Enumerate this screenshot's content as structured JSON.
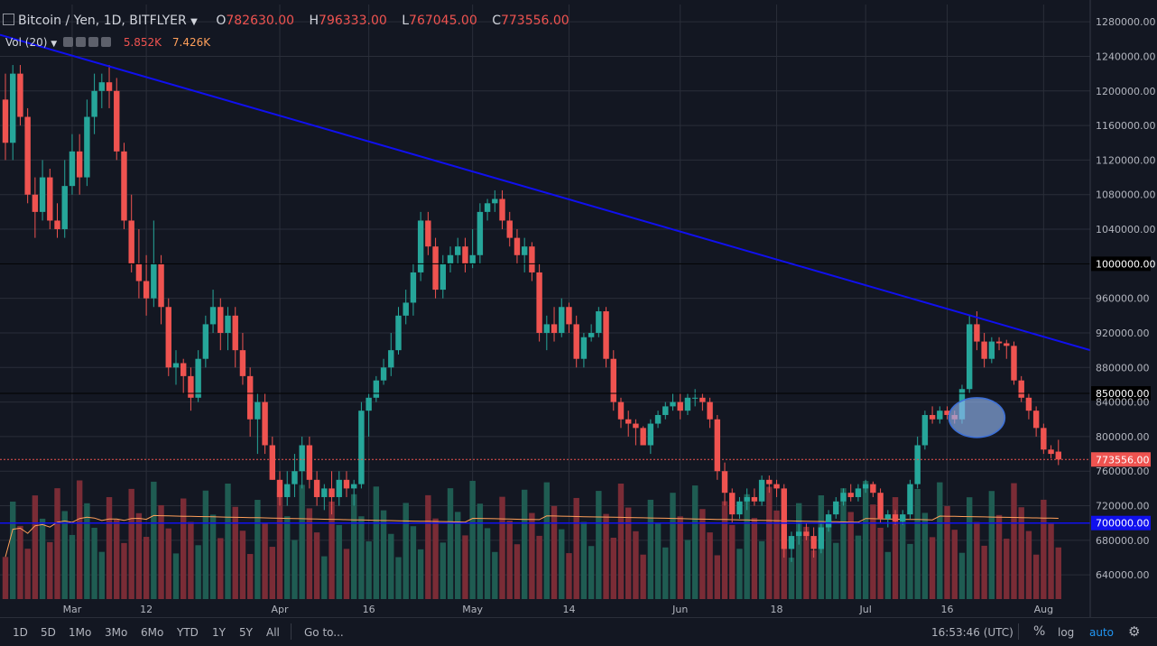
{
  "header": {
    "title": "Bitcoin / Yen, 1D, BITFLYER",
    "open_label": "O",
    "open": "782630.00",
    "high_label": "H",
    "high": "796333.00",
    "low_label": "L",
    "low": "767045.00",
    "close_label": "C",
    "close": "773556.00"
  },
  "volume": {
    "label": "Vol (20)",
    "value1": "5.852K",
    "value2": "7.426K"
  },
  "bottombar": {
    "ranges": [
      "1D",
      "5D",
      "1Mo",
      "3Mo",
      "6Mo",
      "YTD",
      "1Y",
      "5Y",
      "All"
    ],
    "goto": "Go to...",
    "time": "16:53:46 (UTC)",
    "percent": "%",
    "log": "log",
    "auto": "auto"
  },
  "colors": {
    "bg": "#131722",
    "up": "#26a69a",
    "down": "#ef5350",
    "trend": "#1010ee",
    "ma": "#ff9f5a"
  },
  "chart_data": {
    "type": "candlestick",
    "title": "Bitcoin / Yen, 1D, BITFLYER",
    "ylim": [
      612000,
      1300000
    ],
    "y_ticks": [
      "1280000.00",
      "1240000.00",
      "1200000.00",
      "1160000.00",
      "1120000.00",
      "1080000.00",
      "1040000.00",
      "1000000.00",
      "960000.00",
      "920000.00",
      "880000.00",
      "850000.00",
      "840000.00",
      "800000.00",
      "773556.00",
      "760000.00",
      "720000.00",
      "700000.00",
      "680000.00",
      "640000.00"
    ],
    "x_labels": [
      "Mar",
      "12",
      "Apr",
      "16",
      "May",
      "14",
      "Jun",
      "18",
      "Jul",
      "16",
      "Aug"
    ],
    "horizontal_lines": [
      1000000,
      850000,
      700000
    ],
    "last_price": 773556,
    "trendline": {
      "start": 1265000,
      "end": 900000
    },
    "ohlc": [
      [
        1190000,
        1220000,
        1120000,
        1140000
      ],
      [
        1140000,
        1230000,
        1120000,
        1220000
      ],
      [
        1220000,
        1230000,
        1160000,
        1170000
      ],
      [
        1170000,
        1180000,
        1070000,
        1080000
      ],
      [
        1080000,
        1100000,
        1030000,
        1060000
      ],
      [
        1060000,
        1120000,
        1050000,
        1100000
      ],
      [
        1100000,
        1110000,
        1040000,
        1050000
      ],
      [
        1050000,
        1070000,
        1030000,
        1040000
      ],
      [
        1040000,
        1120000,
        1030000,
        1090000
      ],
      [
        1090000,
        1150000,
        1080000,
        1130000
      ],
      [
        1130000,
        1150000,
        1080000,
        1100000
      ],
      [
        1100000,
        1190000,
        1090000,
        1170000
      ],
      [
        1170000,
        1220000,
        1150000,
        1200000
      ],
      [
        1200000,
        1220000,
        1180000,
        1210000
      ],
      [
        1210000,
        1230000,
        1180000,
        1200000
      ],
      [
        1200000,
        1215000,
        1120000,
        1130000
      ],
      [
        1130000,
        1140000,
        1040000,
        1050000
      ],
      [
        1050000,
        1080000,
        990000,
        1000000
      ],
      [
        1000000,
        1040000,
        960000,
        980000
      ],
      [
        980000,
        1010000,
        940000,
        960000
      ],
      [
        960000,
        1050000,
        950000,
        1000000
      ],
      [
        1000000,
        1010000,
        930000,
        950000
      ],
      [
        950000,
        960000,
        870000,
        880000
      ],
      [
        880000,
        900000,
        860000,
        885000
      ],
      [
        885000,
        890000,
        850000,
        870000
      ],
      [
        870000,
        880000,
        830000,
        845000
      ],
      [
        845000,
        900000,
        840000,
        890000
      ],
      [
        890000,
        940000,
        880000,
        930000
      ],
      [
        930000,
        970000,
        920000,
        950000
      ],
      [
        950000,
        960000,
        900000,
        920000
      ],
      [
        920000,
        950000,
        900000,
        940000
      ],
      [
        940000,
        950000,
        880000,
        900000
      ],
      [
        900000,
        920000,
        860000,
        870000
      ],
      [
        870000,
        880000,
        800000,
        820000
      ],
      [
        820000,
        850000,
        780000,
        840000
      ],
      [
        840000,
        850000,
        780000,
        790000
      ],
      [
        790000,
        800000,
        750000,
        750000
      ],
      [
        750000,
        760000,
        720000,
        730000
      ],
      [
        730000,
        760000,
        720000,
        745000
      ],
      [
        745000,
        780000,
        730000,
        760000
      ],
      [
        760000,
        800000,
        740000,
        790000
      ],
      [
        790000,
        800000,
        740000,
        750000
      ],
      [
        750000,
        760000,
        720000,
        730000
      ],
      [
        730000,
        745000,
        715000,
        740000
      ],
      [
        740000,
        760000,
        710000,
        730000
      ],
      [
        730000,
        760000,
        720000,
        750000
      ],
      [
        750000,
        760000,
        730000,
        740000
      ],
      [
        740000,
        750000,
        720000,
        745000
      ],
      [
        745000,
        840000,
        740000,
        830000
      ],
      [
        830000,
        850000,
        800000,
        845000
      ],
      [
        845000,
        870000,
        840000,
        865000
      ],
      [
        865000,
        890000,
        860000,
        880000
      ],
      [
        880000,
        920000,
        870000,
        900000
      ],
      [
        900000,
        950000,
        895000,
        940000
      ],
      [
        940000,
        970000,
        930000,
        955000
      ],
      [
        955000,
        1000000,
        940000,
        990000
      ],
      [
        990000,
        1060000,
        980000,
        1050000
      ],
      [
        1050000,
        1060000,
        1010000,
        1020000
      ],
      [
        1020000,
        1030000,
        960000,
        970000
      ],
      [
        970000,
        1010000,
        960000,
        1000000
      ],
      [
        1000000,
        1020000,
        990000,
        1010000
      ],
      [
        1010000,
        1030000,
        1000000,
        1020000
      ],
      [
        1020000,
        1030000,
        990000,
        1000000
      ],
      [
        1000000,
        1040000,
        995000,
        1010000
      ],
      [
        1010000,
        1070000,
        1000000,
        1060000
      ],
      [
        1060000,
        1075000,
        1050000,
        1070000
      ],
      [
        1070000,
        1085000,
        1060000,
        1075000
      ],
      [
        1075000,
        1085000,
        1040000,
        1050000
      ],
      [
        1050000,
        1060000,
        1020000,
        1030000
      ],
      [
        1030000,
        1040000,
        1000000,
        1010000
      ],
      [
        1010000,
        1030000,
        990000,
        1020000
      ],
      [
        1020000,
        1025000,
        980000,
        990000
      ],
      [
        990000,
        1000000,
        910000,
        920000
      ],
      [
        920000,
        940000,
        900000,
        930000
      ],
      [
        930000,
        950000,
        910000,
        920000
      ],
      [
        920000,
        960000,
        915000,
        950000
      ],
      [
        950000,
        955000,
        920000,
        930000
      ],
      [
        930000,
        940000,
        880000,
        890000
      ],
      [
        890000,
        920000,
        880000,
        915000
      ],
      [
        915000,
        930000,
        910000,
        920000
      ],
      [
        920000,
        950000,
        915000,
        945000
      ],
      [
        945000,
        950000,
        880000,
        890000
      ],
      [
        890000,
        900000,
        830000,
        840000
      ],
      [
        840000,
        845000,
        810000,
        820000
      ],
      [
        820000,
        830000,
        800000,
        815000
      ],
      [
        815000,
        820000,
        790000,
        810000
      ],
      [
        810000,
        812000,
        790000,
        790000
      ],
      [
        790000,
        820000,
        780000,
        815000
      ],
      [
        815000,
        830000,
        810000,
        825000
      ],
      [
        825000,
        840000,
        820000,
        835000
      ],
      [
        835000,
        850000,
        830000,
        840000
      ],
      [
        840000,
        850000,
        820000,
        830000
      ],
      [
        830000,
        850000,
        825000,
        845000
      ],
      [
        845000,
        855000,
        835000,
        845000
      ],
      [
        845000,
        850000,
        830000,
        840000
      ],
      [
        840000,
        845000,
        810000,
        820000
      ],
      [
        820000,
        825000,
        750000,
        760000
      ],
      [
        760000,
        770000,
        720000,
        735000
      ],
      [
        735000,
        740000,
        700000,
        710000
      ],
      [
        710000,
        730000,
        705000,
        725000
      ],
      [
        725000,
        740000,
        715000,
        730000
      ],
      [
        730000,
        740000,
        720000,
        725000
      ],
      [
        725000,
        755000,
        720000,
        750000
      ],
      [
        750000,
        755000,
        735000,
        745000
      ],
      [
        745000,
        750000,
        730000,
        740000
      ],
      [
        740000,
        745000,
        660000,
        670000
      ],
      [
        670000,
        690000,
        655000,
        685000
      ],
      [
        685000,
        700000,
        675000,
        690000
      ],
      [
        690000,
        700000,
        680000,
        685000
      ],
      [
        685000,
        695000,
        660000,
        670000
      ],
      [
        670000,
        700000,
        665000,
        695000
      ],
      [
        695000,
        715000,
        690000,
        710000
      ],
      [
        710000,
        730000,
        705000,
        725000
      ],
      [
        725000,
        740000,
        720000,
        735000
      ],
      [
        735000,
        745000,
        725000,
        730000
      ],
      [
        730000,
        745000,
        725000,
        740000
      ],
      [
        740000,
        750000,
        735000,
        745000
      ],
      [
        745000,
        748000,
        730000,
        735000
      ],
      [
        735000,
        740000,
        700000,
        705000
      ],
      [
        705000,
        715000,
        695000,
        710000
      ],
      [
        710000,
        715000,
        698000,
        702000
      ],
      [
        702000,
        715000,
        698000,
        710000
      ],
      [
        710000,
        750000,
        705000,
        745000
      ],
      [
        745000,
        800000,
        740000,
        790000
      ],
      [
        790000,
        830000,
        785000,
        825000
      ],
      [
        825000,
        835000,
        815000,
        820000
      ],
      [
        820000,
        835000,
        815000,
        830000
      ],
      [
        830000,
        835000,
        820000,
        825000
      ],
      [
        825000,
        830000,
        815000,
        820000
      ],
      [
        820000,
        860000,
        815000,
        855000
      ],
      [
        855000,
        940000,
        850000,
        930000
      ],
      [
        930000,
        945000,
        900000,
        910000
      ],
      [
        910000,
        920000,
        880000,
        890000
      ],
      [
        890000,
        915000,
        885000,
        910000
      ],
      [
        910000,
        915000,
        900000,
        908000
      ],
      [
        908000,
        912000,
        890000,
        905000
      ],
      [
        905000,
        910000,
        860000,
        865000
      ],
      [
        865000,
        870000,
        840000,
        845000
      ],
      [
        845000,
        850000,
        820000,
        830000
      ],
      [
        830000,
        835000,
        800000,
        810000
      ],
      [
        810000,
        815000,
        780000,
        785000
      ],
      [
        785000,
        790000,
        775000,
        780000
      ],
      [
        782630,
        796333,
        767045,
        773556
      ]
    ],
    "volume_ylim": [
      0,
      9000
    ],
    "volume_ma_label": "Vol (20)"
  }
}
